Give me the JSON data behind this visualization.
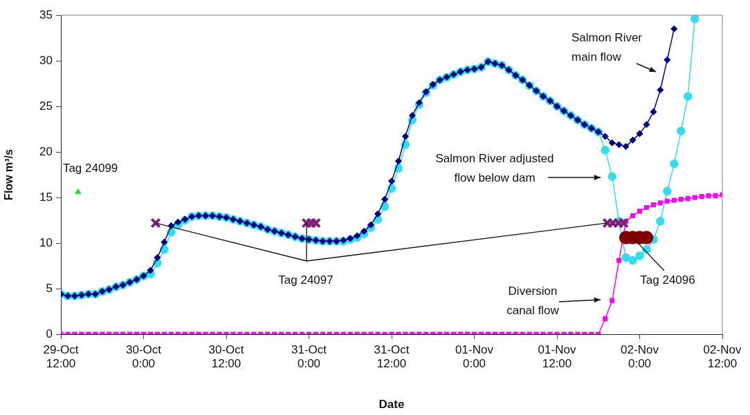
{
  "chart_data": {
    "type": "line",
    "xlabel": "Date",
    "ylabel": "Flow m³/s",
    "grid": false,
    "legend": false,
    "xlim": [
      "--10-29T12:00",
      "--11-02T12:00"
    ],
    "xticks": [
      {
        "value": "--10-29T12:00",
        "label": "29-Oct 12:00"
      },
      {
        "value": "--10-30T00:00",
        "label": "30-Oct 0:00"
      },
      {
        "value": "--10-30T12:00",
        "label": "30-Oct 12:00"
      },
      {
        "value": "--10-31T00:00",
        "label": "31-Oct 0:00"
      },
      {
        "value": "--10-31T12:00",
        "label": "31-Oct 12:00"
      },
      {
        "value": "--11-01T00:00",
        "label": "01-Nov 0:00"
      },
      {
        "value": "--11-01T12:00",
        "label": "01-Nov 12:00"
      },
      {
        "value": "--11-02T00:00",
        "label": "02-Nov 0:00"
      },
      {
        "value": "--11-02T12:00",
        "label": "02-Nov 12:00"
      }
    ],
    "ylim": [
      0,
      35
    ],
    "yticks": [
      0,
      5,
      10,
      15,
      20,
      25,
      30,
      35
    ],
    "x": [
      "--10-29T12:00",
      "--10-29T13:00",
      "--10-29T14:00",
      "--10-29T15:00",
      "--10-29T16:00",
      "--10-29T17:00",
      "--10-29T18:00",
      "--10-29T19:00",
      "--10-29T20:00",
      "--10-29T21:00",
      "--10-29T22:00",
      "--10-29T23:00",
      "--10-30T00:00",
      "--10-30T01:00",
      "--10-30T02:00",
      "--10-30T03:00",
      "--10-30T04:00",
      "--10-30T05:00",
      "--10-30T06:00",
      "--10-30T07:00",
      "--10-30T08:00",
      "--10-30T09:00",
      "--10-30T10:00",
      "--10-30T11:00",
      "--10-30T12:00",
      "--10-30T13:00",
      "--10-30T14:00",
      "--10-30T15:00",
      "--10-30T16:00",
      "--10-30T17:00",
      "--10-30T18:00",
      "--10-30T19:00",
      "--10-30T20:00",
      "--10-30T21:00",
      "--10-30T22:00",
      "--10-30T23:00",
      "--10-31T00:00",
      "--10-31T01:00",
      "--10-31T02:00",
      "--10-31T03:00",
      "--10-31T04:00",
      "--10-31T05:00",
      "--10-31T06:00",
      "--10-31T07:00",
      "--10-31T08:00",
      "--10-31T09:00",
      "--10-31T10:00",
      "--10-31T11:00",
      "--10-31T12:00",
      "--10-31T13:00",
      "--10-31T14:00",
      "--10-31T15:00",
      "--10-31T16:00",
      "--10-31T17:00",
      "--10-31T18:00",
      "--10-31T19:00",
      "--10-31T20:00",
      "--10-31T21:00",
      "--10-31T22:00",
      "--10-31T23:00",
      "--11-01T00:00",
      "--11-01T01:00",
      "--11-01T02:00",
      "--11-01T03:00",
      "--11-01T04:00",
      "--11-01T05:00",
      "--11-01T06:00",
      "--11-01T07:00",
      "--11-01T08:00",
      "--11-01T09:00",
      "--11-01T10:00",
      "--11-01T11:00",
      "--11-01T12:00",
      "--11-01T13:00",
      "--11-01T14:00",
      "--11-01T15:00",
      "--11-01T16:00",
      "--11-01T17:00",
      "--11-01T18:00",
      "--11-01T19:00",
      "--11-01T20:00",
      "--11-01T21:00",
      "--11-01T22:00",
      "--11-01T23:00",
      "--11-02T00:00",
      "--11-02T01:00",
      "--11-02T02:00",
      "--11-02T03:00",
      "--11-02T04:00",
      "--11-02T05:00",
      "--11-02T06:00",
      "--11-02T07:00",
      "--11-02T08:00",
      "--11-02T09:00",
      "--11-02T10:00",
      "--11-02T11:00",
      "--11-02T12:00"
    ],
    "series": [
      {
        "name": "Salmon River main flow",
        "color": "#000080",
        "marker": "diamond",
        "values": [
          4.4,
          4.2,
          4.2,
          4.3,
          4.4,
          4.4,
          4.7,
          4.9,
          5.2,
          5.4,
          5.7,
          6.0,
          6.4,
          7.0,
          8.4,
          10.1,
          11.9,
          12.3,
          12.6,
          12.9,
          13.0,
          13.0,
          13.0,
          12.9,
          12.8,
          12.6,
          12.4,
          12.2,
          12.0,
          11.8,
          11.5,
          11.3,
          11.1,
          10.9,
          10.7,
          10.5,
          10.4,
          10.3,
          10.2,
          10.2,
          10.2,
          10.3,
          10.5,
          10.8,
          11.3,
          12.0,
          13.2,
          14.8,
          16.8,
          19.0,
          21.7,
          24.0,
          25.4,
          26.6,
          27.4,
          27.9,
          28.2,
          28.5,
          28.8,
          29.0,
          29.1,
          29.3,
          29.9,
          29.7,
          29.5,
          29.0,
          28.4,
          27.9,
          27.3,
          26.7,
          26.1,
          25.6,
          25.0,
          24.5,
          24.0,
          23.5,
          23.0,
          22.6,
          22.2,
          21.7,
          21.0,
          20.8,
          20.6,
          21.3,
          22.0,
          23.0,
          24.4,
          26.8,
          30.1,
          33.5,
          null,
          null,
          null,
          null,
          null,
          null,
          null
        ]
      },
      {
        "name": "Salmon River adjusted flow below dam",
        "color": "#33ddee",
        "marker": "circle",
        "values": [
          4.4,
          4.2,
          4.2,
          4.3,
          4.4,
          4.4,
          4.7,
          4.9,
          5.2,
          5.4,
          5.7,
          6.0,
          6.4,
          6.6,
          7.8,
          9.3,
          11.2,
          12.0,
          12.5,
          12.9,
          13.0,
          13.0,
          13.0,
          12.9,
          12.8,
          12.6,
          12.4,
          12.2,
          12.0,
          11.8,
          11.5,
          11.3,
          11.1,
          10.9,
          10.7,
          10.5,
          10.4,
          10.3,
          10.2,
          10.2,
          10.2,
          10.2,
          10.4,
          10.6,
          11.0,
          11.7,
          12.6,
          14.0,
          16.0,
          18.2,
          20.8,
          23.5,
          25.2,
          26.5,
          27.3,
          27.9,
          28.2,
          28.5,
          28.8,
          29.0,
          29.1,
          29.3,
          29.9,
          29.7,
          29.5,
          29.0,
          28.4,
          27.9,
          27.3,
          26.7,
          26.1,
          25.6,
          25.0,
          24.5,
          24.0,
          23.5,
          23.0,
          22.6,
          22.2,
          20.2,
          17.3,
          12.4,
          8.4,
          8.1,
          8.6,
          9.3,
          10.4,
          12.4,
          15.7,
          18.7,
          22.3,
          26.1,
          34.6,
          null,
          null,
          null,
          null
        ]
      },
      {
        "name": "Diversion canal flow",
        "color": "#ff00ff",
        "marker": "square",
        "values": [
          0,
          0,
          0,
          0,
          0,
          0,
          0,
          0,
          0,
          0,
          0,
          0,
          0,
          0,
          0,
          0,
          0,
          0,
          0,
          0,
          0,
          0,
          0,
          0,
          0,
          0,
          0,
          0,
          0,
          0,
          0,
          0,
          0,
          0,
          0,
          0,
          0,
          0,
          0,
          0,
          0,
          0,
          0,
          0,
          0,
          0,
          0,
          0,
          0,
          0,
          0,
          0,
          0,
          0,
          0,
          0,
          0,
          0,
          0,
          0,
          0,
          0,
          0,
          0,
          0,
          0,
          0,
          0,
          0,
          0,
          0,
          0,
          0,
          0,
          0,
          0,
          0,
          0,
          0,
          1.7,
          3.7,
          8.1,
          12.4,
          13.0,
          13.5,
          13.9,
          14.2,
          14.4,
          14.6,
          14.7,
          14.8,
          14.9,
          15.0,
          15.1,
          15.2,
          15.2,
          15.3
        ]
      },
      {
        "name": "Tag 24099",
        "type": "scatter",
        "color": "#22dd22",
        "marker": "triangle",
        "x": [
          "--10-29T14:30"
        ],
        "values": [
          15.6
        ]
      },
      {
        "name": "Tag 24097",
        "type": "scatter",
        "color": "#7b1f7b",
        "marker": "cross",
        "x": [
          "--10-30T01:45",
          "--10-30T23:40",
          "--10-31T00:20",
          "--10-31T01:00",
          "--11-01T19:20",
          "--11-01T20:05",
          "--11-01T20:55",
          "--11-01T21:40"
        ],
        "values": [
          12.2,
          12.2,
          12.2,
          12.2,
          12.2,
          12.2,
          12.2,
          12.2
        ]
      },
      {
        "name": "Tag 24096",
        "type": "scatter",
        "color": "#800000",
        "marker": "circle",
        "x": [
          "--11-01T22:00",
          "--11-01T23:00",
          "--11-02T00:00",
          "--11-02T01:00"
        ],
        "values": [
          10.6,
          10.6,
          10.6,
          10.6
        ]
      }
    ]
  }
}
